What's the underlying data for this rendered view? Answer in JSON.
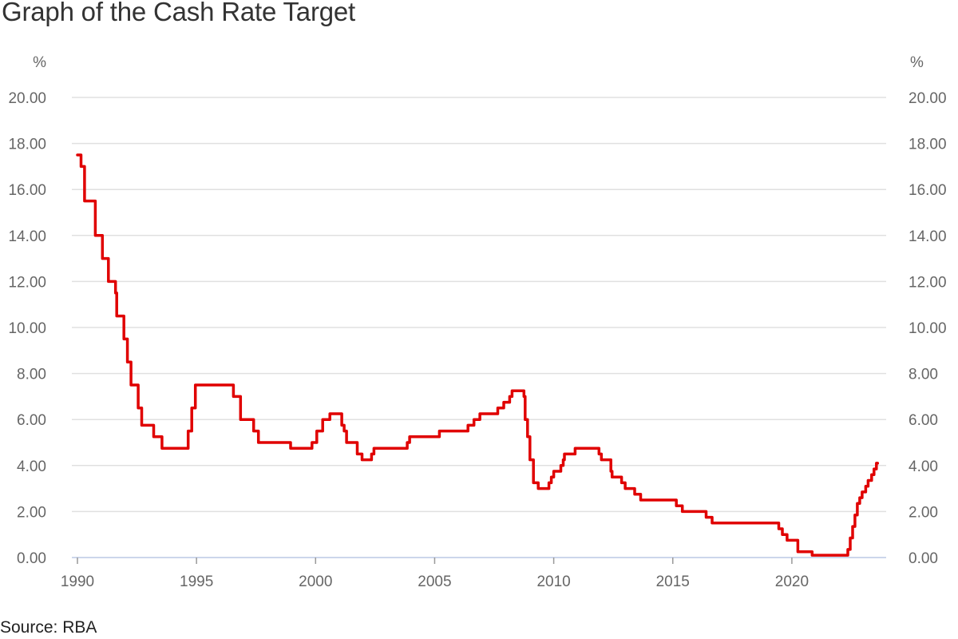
{
  "title": "Graph of the Cash Rate Target",
  "source": "Source: RBA",
  "colors": {
    "line": "#e00000",
    "grid": "#e0e0e0",
    "axis": "#ccd6eb",
    "tick_text": "#666666"
  },
  "chart_data": {
    "type": "line",
    "title": "Graph of the Cash Rate Target",
    "xlabel": "",
    "ylabel": "%",
    "ylabel_right": "%",
    "ylim": [
      0,
      20
    ],
    "xlim": [
      1990,
      2023.6
    ],
    "grid": true,
    "legend": "none",
    "y_ticks": [
      "0.00",
      "2.00",
      "4.00",
      "6.00",
      "8.00",
      "10.00",
      "12.00",
      "14.00",
      "16.00",
      "18.00",
      "20.00"
    ],
    "x_ticks": [
      "1990",
      "1995",
      "2000",
      "2005",
      "2010",
      "2015",
      "2020"
    ],
    "series": [
      {
        "name": "Cash Rate Target",
        "step": true,
        "points": [
          [
            1990.0,
            17.5
          ],
          [
            1990.15,
            17.0
          ],
          [
            1990.3,
            15.5
          ],
          [
            1990.75,
            14.0
          ],
          [
            1991.05,
            13.0
          ],
          [
            1991.3,
            12.0
          ],
          [
            1991.6,
            11.5
          ],
          [
            1991.65,
            10.5
          ],
          [
            1991.95,
            9.5
          ],
          [
            1992.1,
            8.5
          ],
          [
            1992.25,
            7.5
          ],
          [
            1992.55,
            6.5
          ],
          [
            1992.7,
            5.75
          ],
          [
            1993.2,
            5.25
          ],
          [
            1993.55,
            4.75
          ],
          [
            1994.65,
            5.5
          ],
          [
            1994.8,
            6.5
          ],
          [
            1994.95,
            7.5
          ],
          [
            1996.55,
            7.0
          ],
          [
            1996.85,
            6.0
          ],
          [
            1997.4,
            5.5
          ],
          [
            1997.6,
            5.0
          ],
          [
            1998.95,
            4.75
          ],
          [
            1999.85,
            5.0
          ],
          [
            2000.05,
            5.5
          ],
          [
            2000.3,
            6.0
          ],
          [
            2000.6,
            6.25
          ],
          [
            2001.1,
            5.75
          ],
          [
            2001.2,
            5.5
          ],
          [
            2001.3,
            5.0
          ],
          [
            2001.75,
            4.5
          ],
          [
            2001.95,
            4.25
          ],
          [
            2002.35,
            4.5
          ],
          [
            2002.45,
            4.75
          ],
          [
            2003.85,
            5.0
          ],
          [
            2003.95,
            5.25
          ],
          [
            2005.2,
            5.5
          ],
          [
            2006.4,
            5.75
          ],
          [
            2006.65,
            6.0
          ],
          [
            2006.9,
            6.25
          ],
          [
            2007.65,
            6.5
          ],
          [
            2007.9,
            6.75
          ],
          [
            2008.15,
            7.0
          ],
          [
            2008.25,
            7.25
          ],
          [
            2008.75,
            7.0
          ],
          [
            2008.8,
            6.0
          ],
          [
            2008.9,
            5.25
          ],
          [
            2009.0,
            4.25
          ],
          [
            2009.15,
            3.25
          ],
          [
            2009.35,
            3.0
          ],
          [
            2009.8,
            3.25
          ],
          [
            2009.9,
            3.5
          ],
          [
            2010.0,
            3.75
          ],
          [
            2010.3,
            4.0
          ],
          [
            2010.4,
            4.25
          ],
          [
            2010.45,
            4.5
          ],
          [
            2010.9,
            4.75
          ],
          [
            2011.9,
            4.5
          ],
          [
            2012.0,
            4.25
          ],
          [
            2012.4,
            3.75
          ],
          [
            2012.45,
            3.5
          ],
          [
            2012.85,
            3.25
          ],
          [
            2013.0,
            3.0
          ],
          [
            2013.4,
            2.75
          ],
          [
            2013.65,
            2.5
          ],
          [
            2015.15,
            2.25
          ],
          [
            2015.4,
            2.0
          ],
          [
            2016.4,
            1.75
          ],
          [
            2016.65,
            1.5
          ],
          [
            2019.45,
            1.25
          ],
          [
            2019.6,
            1.0
          ],
          [
            2019.8,
            0.75
          ],
          [
            2020.25,
            0.5
          ],
          [
            2020.25,
            0.25
          ],
          [
            2020.85,
            0.1
          ],
          [
            2022.35,
            0.35
          ],
          [
            2022.45,
            0.85
          ],
          [
            2022.55,
            1.35
          ],
          [
            2022.65,
            1.85
          ],
          [
            2022.75,
            2.35
          ],
          [
            2022.85,
            2.6
          ],
          [
            2022.95,
            2.85
          ],
          [
            2023.1,
            3.1
          ],
          [
            2023.2,
            3.35
          ],
          [
            2023.35,
            3.6
          ],
          [
            2023.45,
            3.85
          ],
          [
            2023.55,
            4.1
          ],
          [
            2023.6,
            4.1
          ]
        ]
      }
    ]
  }
}
